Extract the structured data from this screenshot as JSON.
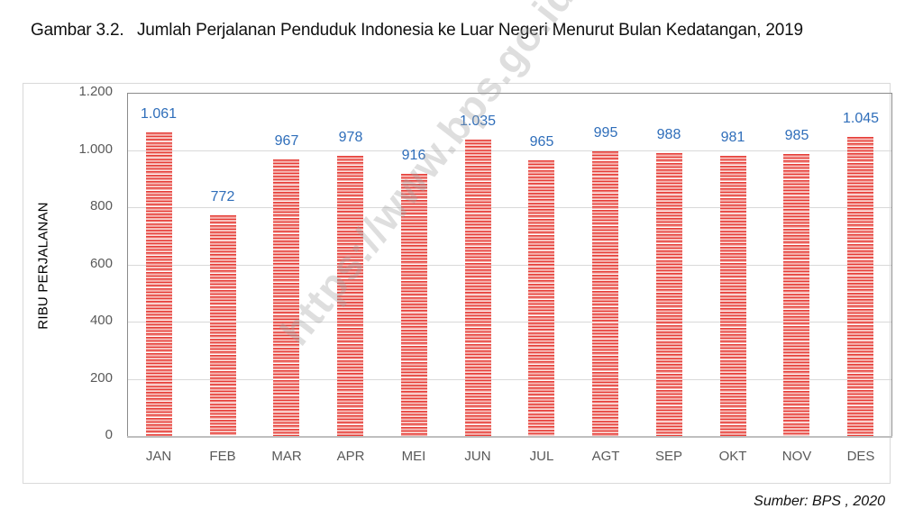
{
  "figure": {
    "label": "Gambar 3.2.",
    "title": "Jumlah Perjalanan Penduduk Indonesia ke Luar Negeri Menurut Bulan Kedatangan, 2019",
    "source": "Sumber: BPS , 2020",
    "watermark": "https://www.bps.go.id"
  },
  "colors": {
    "bar_primary": "#e53b35",
    "bar_stripe": "#f6b3ae",
    "value_label": "#2f6eba",
    "axis_text": "#595959",
    "gridline": "#d9d9d9"
  },
  "chart_data": {
    "type": "bar",
    "title": "Jumlah Perjalanan Penduduk Indonesia ke Luar Negeri Menurut Bulan Kedatangan, 2019",
    "xlabel": "",
    "ylabel": "RIBU PERJALANAN",
    "categories": [
      "JAN",
      "FEB",
      "MAR",
      "APR",
      "MEI",
      "JUN",
      "JUL",
      "AGT",
      "SEP",
      "OKT",
      "NOV",
      "DES"
    ],
    "values": [
      1061,
      772,
      967,
      978,
      916,
      1035,
      965,
      995,
      988,
      981,
      985,
      1045
    ],
    "value_labels": [
      "1.061",
      "772",
      "967",
      "978",
      "916",
      "1.035",
      "965",
      "995",
      "988",
      "981",
      "985",
      "1.045"
    ],
    "ylim": [
      0,
      1200
    ],
    "yticks": [
      0,
      200,
      400,
      600,
      800,
      1000,
      1200
    ],
    "ytick_labels": [
      "0",
      "200",
      "400",
      "600",
      "800",
      "1.000",
      "1.200"
    ],
    "grid": true,
    "legend": "none",
    "source": "Sumber: BPS , 2020"
  }
}
